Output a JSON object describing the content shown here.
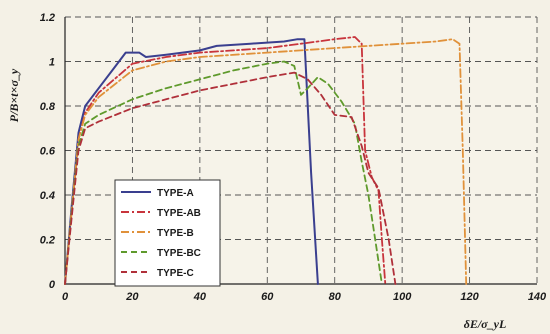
{
  "chart_data": {
    "type": "line",
    "title": "",
    "xlabel": "δE/σ_yL",
    "ylabel": "P/B×t×σ_y",
    "xlim": [
      0,
      140
    ],
    "ylim": [
      0,
      1.2
    ],
    "x_ticks": [
      "0",
      "20",
      "40",
      "60",
      "80",
      "100",
      "120",
      "140"
    ],
    "y_ticks": [
      "0",
      "0.2",
      "0.4",
      "0.6",
      "0.8",
      "1",
      "1.2"
    ],
    "grid": true,
    "legend_position": "lower-left",
    "series": [
      {
        "name": "TYPE-A",
        "color": "#3a3f8f",
        "dash": "solid",
        "points": [
          [
            0,
            0
          ],
          [
            2,
            0.35
          ],
          [
            4,
            0.68
          ],
          [
            6,
            0.8
          ],
          [
            10,
            0.88
          ],
          [
            15,
            0.98
          ],
          [
            18,
            1.04
          ],
          [
            22,
            1.04
          ],
          [
            24,
            1.02
          ],
          [
            30,
            1.03
          ],
          [
            40,
            1.05
          ],
          [
            45,
            1.07
          ],
          [
            55,
            1.08
          ],
          [
            65,
            1.09
          ],
          [
            69,
            1.1
          ],
          [
            71,
            1.1
          ],
          [
            73,
            0.5
          ],
          [
            75,
            0
          ]
        ]
      },
      {
        "name": "TYPE-AB",
        "color": "#c8343c",
        "dash": "dashdot",
        "points": [
          [
            0,
            0
          ],
          [
            2,
            0.33
          ],
          [
            4,
            0.65
          ],
          [
            6,
            0.77
          ],
          [
            10,
            0.86
          ],
          [
            20,
            0.99
          ],
          [
            30,
            1.02
          ],
          [
            40,
            1.04
          ],
          [
            50,
            1.05
          ],
          [
            60,
            1.06
          ],
          [
            70,
            1.08
          ],
          [
            80,
            1.1
          ],
          [
            86,
            1.11
          ],
          [
            88,
            1.08
          ],
          [
            89,
            0.6
          ],
          [
            91,
            0.48
          ],
          [
            93,
            0.42
          ],
          [
            94,
            0.2
          ],
          [
            95,
            0
          ]
        ]
      },
      {
        "name": "TYPE-B",
        "color": "#e0913a",
        "dash": "dashdot",
        "points": [
          [
            0,
            0
          ],
          [
            2,
            0.33
          ],
          [
            4,
            0.65
          ],
          [
            6,
            0.76
          ],
          [
            10,
            0.84
          ],
          [
            20,
            0.96
          ],
          [
            30,
            1.0
          ],
          [
            40,
            1.02
          ],
          [
            60,
            1.04
          ],
          [
            80,
            1.06
          ],
          [
            100,
            1.08
          ],
          [
            110,
            1.09
          ],
          [
            115,
            1.1
          ],
          [
            117,
            1.08
          ],
          [
            118,
            0.6
          ],
          [
            119,
            0
          ]
        ]
      },
      {
        "name": "TYPE-BC",
        "color": "#5f9a2c",
        "dash": "dashed",
        "points": [
          [
            0,
            0
          ],
          [
            2,
            0.32
          ],
          [
            4,
            0.62
          ],
          [
            6,
            0.72
          ],
          [
            10,
            0.76
          ],
          [
            20,
            0.83
          ],
          [
            30,
            0.88
          ],
          [
            40,
            0.92
          ],
          [
            50,
            0.96
          ],
          [
            60,
            0.99
          ],
          [
            65,
            1.0
          ],
          [
            68,
            0.98
          ],
          [
            70,
            0.85
          ],
          [
            72,
            0.88
          ],
          [
            75,
            0.93
          ],
          [
            78,
            0.9
          ],
          [
            82,
            0.82
          ],
          [
            86,
            0.72
          ],
          [
            88,
            0.55
          ],
          [
            90,
            0.4
          ],
          [
            92,
            0.2
          ],
          [
            94,
            0
          ]
        ]
      },
      {
        "name": "TYPE-C",
        "color": "#b0303a",
        "dash": "dashed",
        "points": [
          [
            0,
            0
          ],
          [
            2,
            0.3
          ],
          [
            4,
            0.6
          ],
          [
            6,
            0.7
          ],
          [
            10,
            0.73
          ],
          [
            20,
            0.79
          ],
          [
            30,
            0.83
          ],
          [
            40,
            0.87
          ],
          [
            50,
            0.9
          ],
          [
            60,
            0.93
          ],
          [
            68,
            0.95
          ],
          [
            72,
            0.92
          ],
          [
            76,
            0.85
          ],
          [
            80,
            0.76
          ],
          [
            85,
            0.75
          ],
          [
            88,
            0.62
          ],
          [
            90,
            0.5
          ],
          [
            93,
            0.43
          ],
          [
            96,
            0.2
          ],
          [
            98,
            0
          ]
        ]
      }
    ]
  }
}
